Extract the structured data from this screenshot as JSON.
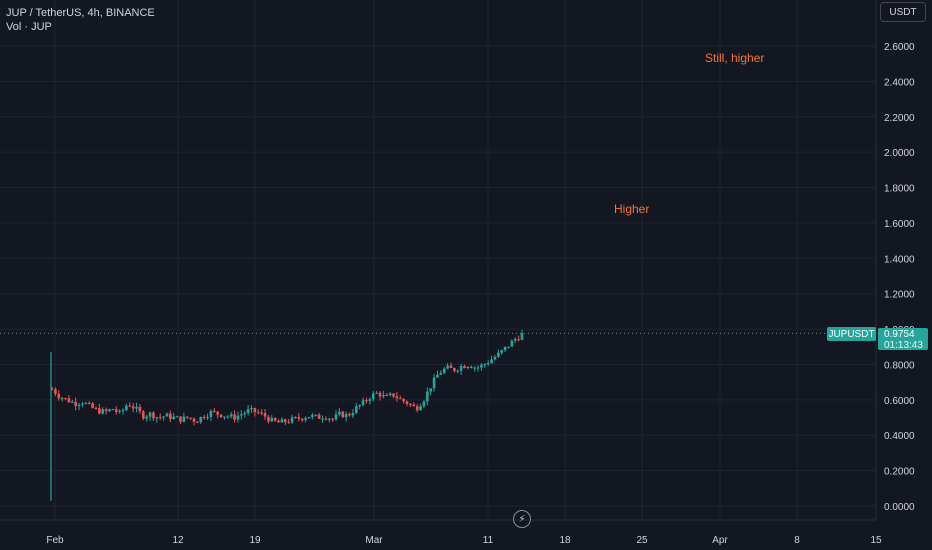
{
  "legend": {
    "title": "JUP / TetherUS, 4h, BINANCE",
    "volume": "Vol · JUP"
  },
  "currency_button": "USDT",
  "annotations": [
    {
      "text": "Still, higher"
    },
    {
      "text": "Higher"
    }
  ],
  "price_tag": {
    "symbol": "JUPUSDT",
    "value": "0.9754",
    "countdown": "01:13:43",
    "color": "#26a69a"
  },
  "replay_icon": "lightning-icon",
  "colors": {
    "background": "#131722",
    "up": "#26a69a",
    "down": "#ef5350",
    "annotation": "#f7752f",
    "grid": "#1f232e"
  },
  "chart_data": {
    "type": "candlestick",
    "y_axis": {
      "range": [
        -0.05,
        2.8
      ],
      "ticks": [
        0.0,
        0.2,
        0.4,
        0.6,
        0.8,
        1.0,
        1.2,
        1.4,
        1.6,
        1.8,
        2.0,
        2.2,
        2.4,
        2.6
      ],
      "tick_labels": [
        "0.0000",
        "0.2000",
        "0.4000",
        "0.6000",
        "0.8000",
        "1.0000",
        "1.2000",
        "1.4000",
        "1.6000",
        "1.8000",
        "2.0000",
        "2.2000",
        "2.4000",
        "2.6000"
      ]
    },
    "x_axis": {
      "tick_labels": [
        "Feb",
        "12",
        "19",
        "Mar",
        "11",
        "18",
        "25",
        "Apr",
        "8",
        "15"
      ]
    },
    "price_path": [
      [
        0,
        0.66
      ],
      [
        1,
        0.62
      ],
      [
        2,
        0.6
      ],
      [
        3,
        0.58
      ],
      [
        4,
        0.59
      ],
      [
        5,
        0.56
      ],
      [
        6,
        0.54
      ],
      [
        7,
        0.53
      ],
      [
        8,
        0.55
      ],
      [
        9,
        0.52
      ],
      [
        10,
        0.58
      ],
      [
        11,
        0.55
      ],
      [
        12,
        0.51
      ],
      [
        13,
        0.52
      ],
      [
        14,
        0.5
      ],
      [
        15,
        0.51
      ],
      [
        16,
        0.5
      ],
      [
        17,
        0.49
      ],
      [
        18,
        0.5
      ],
      [
        19,
        0.48
      ],
      [
        20,
        0.51
      ],
      [
        21,
        0.53
      ],
      [
        22,
        0.52
      ],
      [
        23,
        0.51
      ],
      [
        24,
        0.5
      ],
      [
        25,
        0.52
      ],
      [
        26,
        0.54
      ],
      [
        27,
        0.53
      ],
      [
        28,
        0.51
      ],
      [
        29,
        0.48
      ],
      [
        30,
        0.47
      ],
      [
        31,
        0.48
      ],
      [
        32,
        0.49
      ],
      [
        33,
        0.5
      ],
      [
        34,
        0.51
      ],
      [
        35,
        0.5
      ],
      [
        36,
        0.51
      ],
      [
        37,
        0.49
      ],
      [
        38,
        0.52
      ],
      [
        39,
        0.51
      ],
      [
        40,
        0.55
      ],
      [
        41,
        0.58
      ],
      [
        42,
        0.62
      ],
      [
        43,
        0.64
      ],
      [
        44,
        0.61
      ],
      [
        45,
        0.63
      ],
      [
        46,
        0.6
      ],
      [
        47,
        0.58
      ],
      [
        48,
        0.55
      ],
      [
        49,
        0.6
      ],
      [
        50,
        0.68
      ],
      [
        51,
        0.75
      ],
      [
        52,
        0.78
      ],
      [
        53,
        0.77
      ],
      [
        54,
        0.79
      ],
      [
        55,
        0.8
      ],
      [
        56,
        0.78
      ],
      [
        57,
        0.8
      ],
      [
        58,
        0.83
      ],
      [
        59,
        0.86
      ],
      [
        60,
        0.9
      ],
      [
        61,
        0.94
      ],
      [
        62,
        0.97
      ]
    ],
    "volume_spike_low": 0.03,
    "volume_spike_high": 0.87,
    "current_price": 0.9754,
    "grid": true
  }
}
